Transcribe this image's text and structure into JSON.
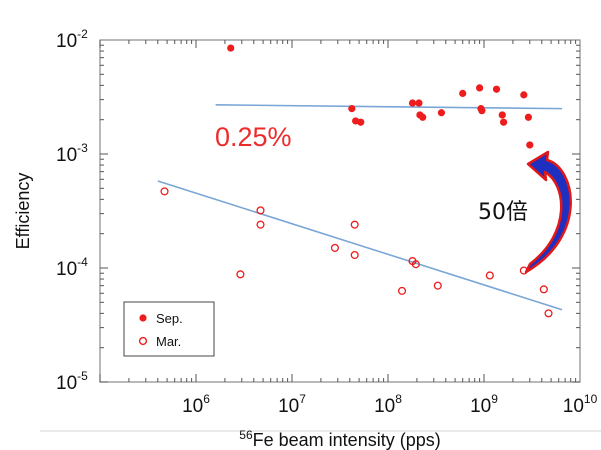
{
  "colors": {
    "marker": "#ee1c1c",
    "fit_line": "#7aa6d6",
    "annotation_red": "#ee2b2b",
    "arrow_fill": "#1f2fbf",
    "arrow_edge": "#e01818"
  },
  "chart_data": {
    "type": "scatter",
    "title": "",
    "xlabel_prefix": "56",
    "xlabel": "Fe beam intensity (pps)",
    "ylabel": "Efficiency",
    "xscale": "log",
    "yscale": "log",
    "xlim": [
      100000,
      10000000000
    ],
    "ylim": [
      1e-05,
      0.01
    ],
    "grid": false,
    "legend_placement": "bottom-left",
    "x_ticks": [
      {
        "value": 1000000,
        "base": "10",
        "exp": "6"
      },
      {
        "value": 10000000,
        "base": "10",
        "exp": "7"
      },
      {
        "value": 100000000,
        "base": "10",
        "exp": "8"
      },
      {
        "value": 1000000000,
        "base": "10",
        "exp": "9"
      },
      {
        "value": 10000000000,
        "base": "10",
        "exp": "10"
      }
    ],
    "y_ticks": [
      {
        "value": 0.01,
        "base": "10",
        "exp": "-2"
      },
      {
        "value": 0.001,
        "base": "10",
        "exp": "-3"
      },
      {
        "value": 0.0001,
        "base": "10",
        "exp": "-4"
      },
      {
        "value": 1e-05,
        "base": "10",
        "exp": "-5"
      }
    ],
    "series": [
      {
        "name": "Sep.",
        "marker": "filled",
        "points": [
          [
            2300000,
            0.0085
          ],
          [
            42000000,
            0.0025
          ],
          [
            46000000,
            0.00195
          ],
          [
            52000000,
            0.0019
          ],
          [
            180000000,
            0.0028
          ],
          [
            210000000,
            0.0028
          ],
          [
            215000000,
            0.0022
          ],
          [
            230000000,
            0.0021
          ],
          [
            360000000,
            0.0023
          ],
          [
            600000000,
            0.0034
          ],
          [
            900000000,
            0.0038
          ],
          [
            930000000,
            0.0025
          ],
          [
            950000000,
            0.0024
          ],
          [
            1350000000,
            0.0037
          ],
          [
            1550000000,
            0.0022
          ],
          [
            1600000000,
            0.0019
          ],
          [
            2600000000,
            0.0033
          ],
          [
            2900000000,
            0.0021
          ],
          [
            3000000000,
            0.0012
          ]
        ],
        "fit": [
          [
            1600000,
            0.0027
          ],
          [
            6500000000,
            0.0025
          ]
        ]
      },
      {
        "name": "Mar.",
        "marker": "open",
        "points": [
          [
            470000,
            0.00047
          ],
          [
            2900000,
            8.8e-05
          ],
          [
            4700000,
            0.00032
          ],
          [
            4700000,
            0.00024
          ],
          [
            28000000,
            0.00015
          ],
          [
            45000000,
            0.00024
          ],
          [
            45000000,
            0.00013
          ],
          [
            140000000,
            6.3e-05
          ],
          [
            180000000,
            0.000115
          ],
          [
            195000000,
            0.000108
          ],
          [
            330000000,
            7e-05
          ],
          [
            1150000000,
            8.6e-05
          ],
          [
            2600000000,
            9.5e-05
          ],
          [
            4200000000,
            6.5e-05
          ],
          [
            4700000000,
            4e-05
          ]
        ],
        "fit": [
          [
            400000,
            0.00058
          ],
          [
            6500000000,
            4.3e-05
          ]
        ]
      }
    ],
    "annotations": {
      "percent_label": "0.25%",
      "ratio_label": "50倍"
    }
  }
}
